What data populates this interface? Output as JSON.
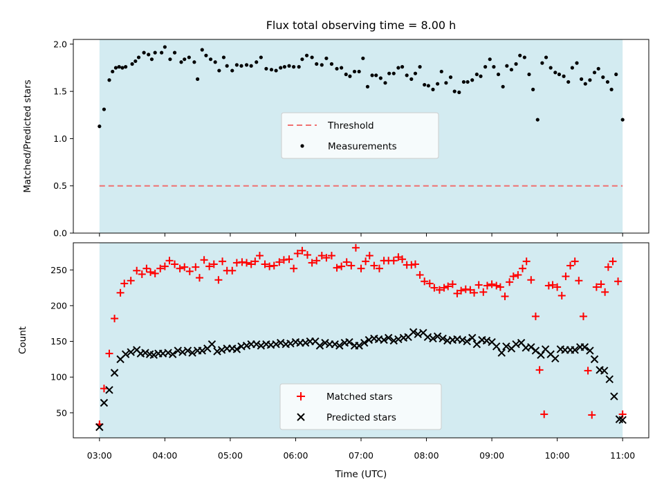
{
  "chart_data": {
    "type": "scatter",
    "title": "Flux total observing time = 8.00 h",
    "xlabel": "Time (UTC)",
    "x_ticks": [
      "03:00",
      "04:00",
      "05:00",
      "06:00",
      "07:00",
      "08:00",
      "09:00",
      "10:00",
      "11:00"
    ],
    "x_range_hours": [
      2.6,
      11.4
    ],
    "observing_window_hours": [
      3.0,
      11.0
    ],
    "shade_color": "#d3ebf1",
    "top": {
      "ylabel": "Matched/Predicted stars",
      "ylim": [
        0.0,
        2.05
      ],
      "yticks": [
        0.0,
        0.5,
        1.0,
        1.5,
        2.0
      ],
      "ytick_labels": [
        "0.0",
        "0.5",
        "1.0",
        "1.5",
        "2.0"
      ],
      "threshold": 0.5,
      "threshold_color": "#f07070",
      "legend_position": "center",
      "legend": [
        "Threshold",
        "Measurements"
      ],
      "measurements": {
        "name": "Measurements",
        "color": "#000000",
        "x": [
          3.0,
          3.07,
          3.15,
          3.2,
          3.25,
          3.3,
          3.35,
          3.4,
          3.5,
          3.55,
          3.6,
          3.68,
          3.75,
          3.8,
          3.85,
          3.95,
          4.0,
          4.08,
          4.15,
          4.25,
          4.3,
          4.37,
          4.45,
          4.5,
          4.57,
          4.63,
          4.7,
          4.77,
          4.83,
          4.9,
          4.95,
          5.03,
          5.1,
          5.17,
          5.25,
          5.32,
          5.4,
          5.47,
          5.55,
          5.63,
          5.7,
          5.77,
          5.83,
          5.9,
          5.97,
          6.05,
          6.1,
          6.17,
          6.25,
          6.32,
          6.4,
          6.47,
          6.55,
          6.63,
          6.7,
          6.77,
          6.83,
          6.9,
          6.97,
          7.03,
          7.1,
          7.17,
          7.23,
          7.3,
          7.37,
          7.43,
          7.5,
          7.57,
          7.63,
          7.7,
          7.77,
          7.83,
          7.9,
          7.97,
          8.03,
          8.1,
          8.17,
          8.23,
          8.3,
          8.37,
          8.43,
          8.5,
          8.57,
          8.63,
          8.7,
          8.77,
          8.83,
          8.9,
          8.97,
          9.03,
          9.1,
          9.17,
          9.23,
          9.3,
          9.37,
          9.43,
          9.5,
          9.57,
          9.63,
          9.7,
          9.77,
          9.83,
          9.9,
          9.97,
          10.03,
          10.1,
          10.17,
          10.23,
          10.3,
          10.37,
          10.43,
          10.5,
          10.57,
          10.63,
          10.7,
          10.77,
          10.83,
          10.9,
          11.0
        ],
        "y": [
          1.13,
          1.31,
          1.62,
          1.71,
          1.75,
          1.76,
          1.75,
          1.76,
          1.79,
          1.82,
          1.86,
          1.91,
          1.89,
          1.84,
          1.91,
          1.91,
          1.97,
          1.84,
          1.91,
          1.81,
          1.84,
          1.86,
          1.81,
          1.63,
          1.94,
          1.88,
          1.84,
          1.81,
          1.72,
          1.86,
          1.77,
          1.72,
          1.78,
          1.77,
          1.78,
          1.77,
          1.81,
          1.86,
          1.74,
          1.73,
          1.72,
          1.75,
          1.76,
          1.77,
          1.76,
          1.76,
          1.84,
          1.88,
          1.86,
          1.79,
          1.78,
          1.85,
          1.79,
          1.74,
          1.75,
          1.68,
          1.66,
          1.71,
          1.71,
          1.85,
          1.55,
          1.67,
          1.67,
          1.64,
          1.59,
          1.69,
          1.69,
          1.75,
          1.76,
          1.67,
          1.63,
          1.69,
          1.76,
          1.57,
          1.56,
          1.52,
          1.58,
          1.71,
          1.59,
          1.65,
          1.5,
          1.49,
          1.6,
          1.6,
          1.62,
          1.68,
          1.66,
          1.76,
          1.84,
          1.76,
          1.68,
          1.55,
          1.77,
          1.73,
          1.79,
          1.88,
          1.86,
          1.68,
          1.52,
          1.2,
          1.8,
          1.86,
          1.75,
          1.7,
          1.68,
          1.66,
          1.6,
          1.75,
          1.8,
          1.63,
          1.58,
          1.62,
          1.7,
          1.74,
          1.65,
          1.6,
          1.52,
          1.68,
          1.2
        ]
      }
    },
    "bottom": {
      "ylabel": "Count",
      "ylim": [
        15,
        288
      ],
      "yticks": [
        50,
        100,
        150,
        200,
        250
      ],
      "ytick_labels": [
        "50",
        "100",
        "150",
        "200",
        "250"
      ],
      "legend_position": "lower center",
      "legend": [
        "Matched stars",
        "Predicted stars"
      ],
      "matched": {
        "name": "Matched stars",
        "color": "#ff0000",
        "x": [
          3.0,
          3.07,
          3.15,
          3.23,
          3.32,
          3.38,
          3.48,
          3.57,
          3.65,
          3.72,
          3.78,
          3.85,
          3.93,
          4.0,
          4.07,
          4.15,
          4.23,
          4.3,
          4.38,
          4.47,
          4.53,
          4.6,
          4.68,
          4.75,
          4.82,
          4.88,
          4.95,
          5.03,
          5.1,
          5.18,
          5.25,
          5.32,
          5.38,
          5.45,
          5.53,
          5.6,
          5.67,
          5.75,
          5.82,
          5.9,
          5.97,
          6.03,
          6.1,
          6.18,
          6.25,
          6.32,
          6.4,
          6.47,
          6.55,
          6.63,
          6.7,
          6.78,
          6.85,
          6.92,
          7.0,
          7.07,
          7.13,
          7.2,
          7.28,
          7.35,
          7.42,
          7.5,
          7.57,
          7.63,
          7.7,
          7.77,
          7.83,
          7.9,
          7.97,
          8.05,
          8.12,
          8.2,
          8.27,
          8.33,
          8.4,
          8.47,
          8.53,
          8.6,
          8.67,
          8.73,
          8.8,
          8.87,
          8.93,
          9.0,
          9.07,
          9.13,
          9.2,
          9.27,
          9.33,
          9.4,
          9.47,
          9.53,
          9.6,
          9.67,
          9.73,
          9.8,
          9.87,
          9.93,
          10.0,
          10.07,
          10.13,
          10.2,
          10.27,
          10.33,
          10.4,
          10.47,
          10.53,
          10.6,
          10.67,
          10.73,
          10.78,
          10.85,
          10.93,
          11.0
        ],
        "y": [
          34,
          84,
          133,
          182,
          218,
          231,
          235,
          249,
          244,
          252,
          247,
          245,
          252,
          255,
          263,
          258,
          252,
          254,
          248,
          254,
          239,
          264,
          255,
          258,
          236,
          262,
          249,
          249,
          260,
          261,
          260,
          258,
          262,
          270,
          258,
          255,
          256,
          261,
          264,
          265,
          252,
          273,
          277,
          271,
          260,
          263,
          270,
          267,
          270,
          253,
          255,
          261,
          256,
          281,
          252,
          262,
          270,
          256,
          252,
          263,
          263,
          263,
          268,
          265,
          257,
          257,
          258,
          243,
          234,
          231,
          225,
          222,
          225,
          227,
          230,
          217,
          221,
          223,
          222,
          218,
          229,
          219,
          228,
          230,
          228,
          226,
          213,
          233,
          241,
          243,
          252,
          262,
          236,
          185,
          110,
          48,
          228,
          229,
          226,
          214,
          241,
          256,
          262,
          235,
          185,
          109,
          47,
          226,
          230,
          219,
          254,
          262,
          234,
          48
        ],
        "note_hidden": ""
      },
      "predicted": {
        "name": "Predicted stars",
        "color": "#000000",
        "x": [
          3.0,
          3.07,
          3.15,
          3.23,
          3.32,
          3.4,
          3.48,
          3.57,
          3.63,
          3.7,
          3.77,
          3.83,
          3.9,
          3.97,
          4.05,
          4.12,
          4.2,
          4.27,
          4.35,
          4.42,
          4.5,
          4.57,
          4.65,
          4.72,
          4.8,
          4.87,
          4.95,
          5.03,
          5.1,
          5.17,
          5.25,
          5.32,
          5.4,
          5.47,
          5.55,
          5.62,
          5.7,
          5.77,
          5.85,
          5.92,
          6.0,
          6.07,
          6.15,
          6.22,
          6.3,
          6.37,
          6.45,
          6.52,
          6.6,
          6.67,
          6.75,
          6.82,
          6.9,
          6.97,
          7.05,
          7.12,
          7.2,
          7.27,
          7.35,
          7.42,
          7.5,
          7.57,
          7.65,
          7.72,
          7.8,
          7.87,
          7.95,
          8.02,
          8.1,
          8.17,
          8.25,
          8.32,
          8.4,
          8.47,
          8.55,
          8.62,
          8.7,
          8.77,
          8.85,
          8.92,
          9.0,
          9.07,
          9.15,
          9.22,
          9.3,
          9.37,
          9.45,
          9.52,
          9.6,
          9.67,
          9.75,
          9.82,
          9.9,
          9.97,
          10.05,
          10.12,
          10.2,
          10.27,
          10.35,
          10.42,
          10.5,
          10.57,
          10.65,
          10.72,
          10.8,
          10.87,
          10.95,
          11.0
        ],
        "y": [
          30,
          64,
          82,
          106,
          125,
          132,
          135,
          138,
          133,
          134,
          132,
          131,
          133,
          133,
          134,
          132,
          137,
          135,
          137,
          134,
          137,
          137,
          140,
          146,
          136,
          138,
          140,
          140,
          139,
          143,
          144,
          146,
          146,
          144,
          146,
          145,
          146,
          148,
          146,
          147,
          149,
          148,
          148,
          150,
          150,
          144,
          148,
          146,
          146,
          144,
          148,
          149,
          144,
          144,
          148,
          152,
          154,
          153,
          152,
          155,
          151,
          153,
          155,
          156,
          163,
          160,
          162,
          156,
          154,
          157,
          154,
          151,
          152,
          153,
          152,
          150,
          155,
          146,
          152,
          151,
          149,
          143,
          134,
          143,
          140,
          146,
          148,
          141,
          142,
          137,
          131,
          139,
          132,
          126,
          139,
          138,
          138,
          138,
          142,
          142,
          137,
          125,
          110,
          109,
          97,
          73,
          41,
          40
        ],
        "extra_note": ""
      }
    }
  }
}
